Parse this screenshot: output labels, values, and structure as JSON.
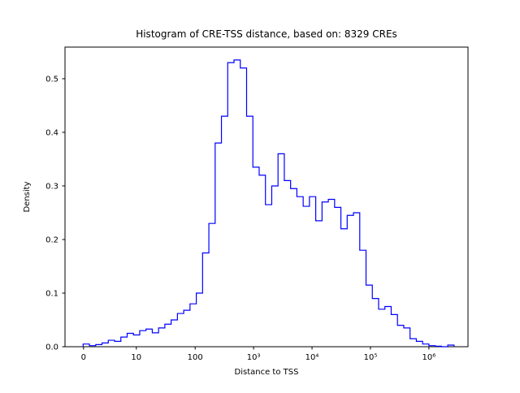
{
  "figure": {
    "background": "#ffffff",
    "axis_color": "#000000",
    "line_color": "#0000ff"
  },
  "chart_data": {
    "type": "bar",
    "subtype": "step-histogram",
    "title": "Histogram of CRE-TSS distance, based on: 8329 CREs",
    "xlabel": "Distance to TSS",
    "ylabel": "Density",
    "n_cres": 8329,
    "x_scale": "symlog",
    "grid": false,
    "legend": "none",
    "ylim": [
      0,
      0.559
    ],
    "yticks": [
      {
        "value": 0.0,
        "label": "0.0"
      },
      {
        "value": 0.1,
        "label": "0.1"
      },
      {
        "value": 0.2,
        "label": "0.2"
      },
      {
        "value": 0.3,
        "label": "0.3"
      },
      {
        "value": 0.4,
        "label": "0.4"
      },
      {
        "value": 0.5,
        "label": "0.5"
      }
    ],
    "xticks": [
      {
        "label": "0",
        "pos": 0.046
      },
      {
        "label": "10",
        "pos": 0.177
      },
      {
        "label": "100",
        "pos": 0.323
      },
      {
        "label": "10³",
        "pos": 0.468
      },
      {
        "label": "10⁴",
        "pos": 0.613
      },
      {
        "label": "10⁵",
        "pos": 0.758
      },
      {
        "label": "10⁶",
        "pos": 0.903
      }
    ],
    "bins": {
      "start_frac": 0.045,
      "width_frac": 0.0156,
      "heights": [
        0.005,
        0.002,
        0.004,
        0.007,
        0.012,
        0.01,
        0.018,
        0.025,
        0.022,
        0.03,
        0.033,
        0.026,
        0.035,
        0.042,
        0.05,
        0.062,
        0.068,
        0.08,
        0.1,
        0.175,
        0.23,
        0.38,
        0.43,
        0.53,
        0.535,
        0.52,
        0.43,
        0.335,
        0.32,
        0.265,
        0.3,
        0.36,
        0.31,
        0.295,
        0.28,
        0.262,
        0.28,
        0.235,
        0.27,
        0.275,
        0.26,
        0.22,
        0.245,
        0.25,
        0.18,
        0.115,
        0.09,
        0.07,
        0.075,
        0.06,
        0.04,
        0.035,
        0.015,
        0.01,
        0.005,
        0.002,
        0.001,
        0.0,
        0.003
      ]
    }
  }
}
